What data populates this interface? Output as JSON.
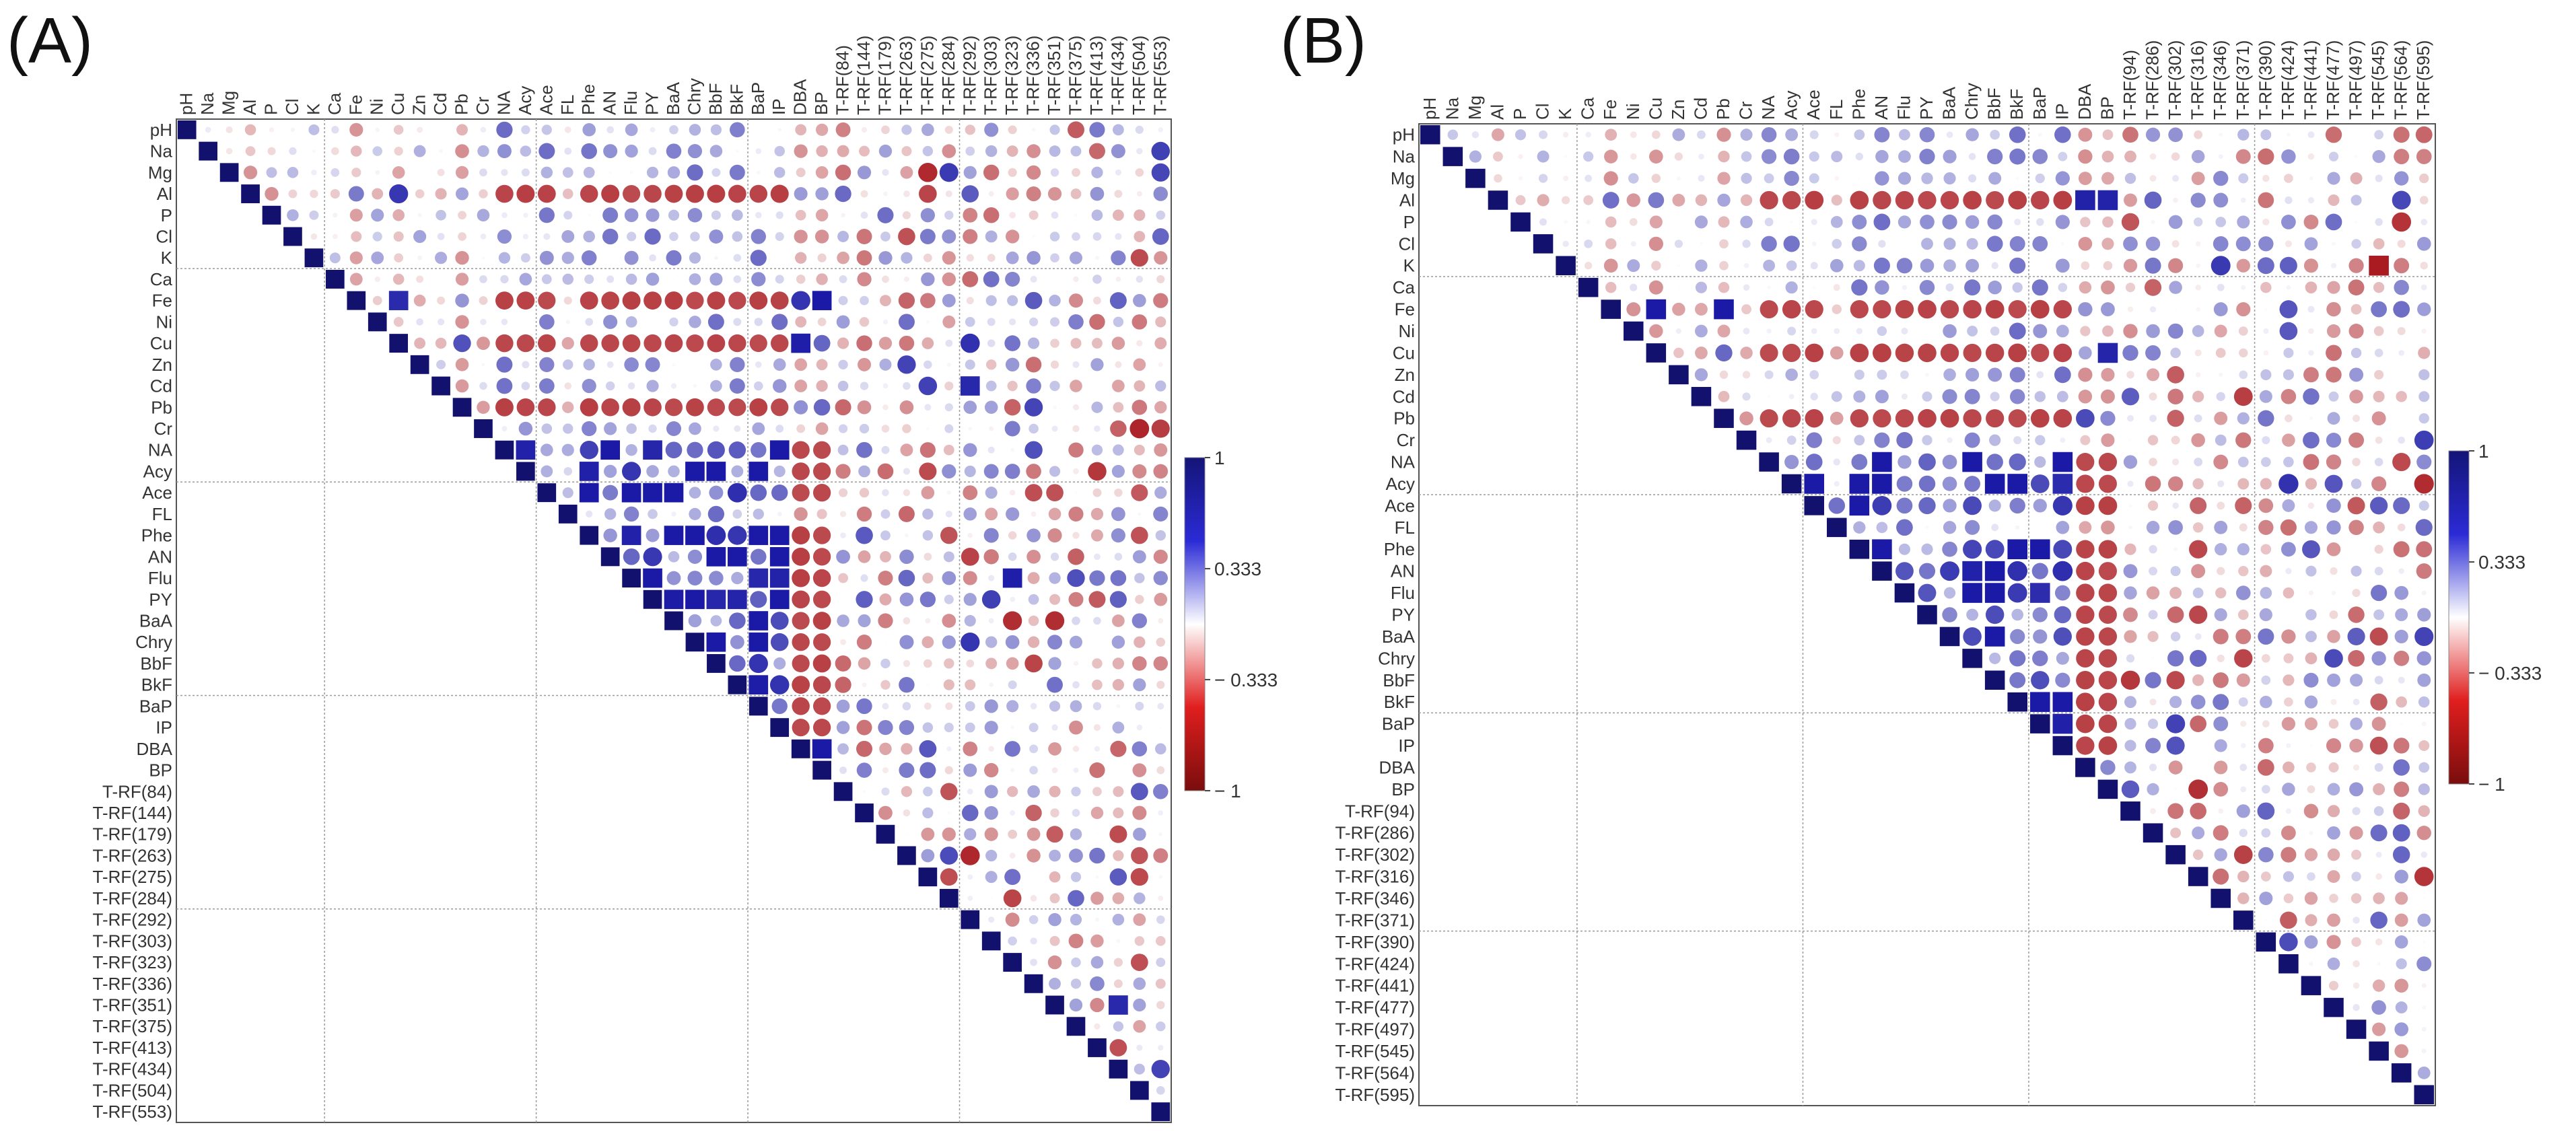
{
  "panels": [
    {
      "letter": "(A)",
      "chart_data": {
        "type": "heatmap",
        "subtype": "correlation-circle-matrix-upper-triangle",
        "variables": [
          "pH",
          "Na",
          "Mg",
          "Al",
          "P",
          "Cl",
          "K",
          "Ca",
          "Fe",
          "Ni",
          "Cu",
          "Zn",
          "Cd",
          "Pb",
          "Cr",
          "NA",
          "Acy",
          "Ace",
          "FL",
          "Phe",
          "AN",
          "Flu",
          "PY",
          "BaA",
          "Chry",
          "BbF",
          "BkF",
          "BaP",
          "IP",
          "DBA",
          "BP",
          "T-RF(84)",
          "T-RF(144)",
          "T-RF(179)",
          "T-RF(263)",
          "T-RF(275)",
          "T-RF(284)",
          "T-RF(292)",
          "T-RF(303)",
          "T-RF(323)",
          "T-RF(336)",
          "T-RF(351)",
          "T-RF(375)",
          "T-RF(413)",
          "T-RF(434)",
          "T-RF(504)",
          "T-RF(553)"
        ],
        "colorbar": {
          "ticks": [
            "1",
            "0.333",
            "− 0.333",
            "− 1"
          ],
          "range": [
            -1,
            1
          ]
        },
        "colors": {
          "positive": "#1a1aa6",
          "negative": "#a50f15",
          "neutral": "#ffffff"
        }
      }
    },
    {
      "letter": "(B)",
      "chart_data": {
        "type": "heatmap",
        "subtype": "correlation-circle-matrix-upper-triangle",
        "variables": [
          "pH",
          "Na",
          "Mg",
          "Al",
          "P",
          "Cl",
          "K",
          "Ca",
          "Fe",
          "Ni",
          "Cu",
          "Zn",
          "Cd",
          "Pb",
          "Cr",
          "NA",
          "Acy",
          "Ace",
          "FL",
          "Phe",
          "AN",
          "Flu",
          "PY",
          "BaA",
          "Chry",
          "BbF",
          "BkF",
          "BaP",
          "IP",
          "DBA",
          "BP",
          "T-RF(94)",
          "T-RF(286)",
          "T-RF(302)",
          "T-RF(316)",
          "T-RF(346)",
          "T-RF(371)",
          "T-RF(390)",
          "T-RF(424)",
          "T-RF(441)",
          "T-RF(477)",
          "T-RF(497)",
          "T-RF(545)",
          "T-RF(564)",
          "T-RF(595)"
        ],
        "colorbar": {
          "ticks": [
            "1",
            "0.333",
            "− 0.333",
            "− 1"
          ],
          "range": [
            -1,
            1
          ]
        },
        "colors": {
          "positive": "#1a1aa6",
          "negative": "#a50f15",
          "neutral": "#ffffff"
        }
      }
    }
  ]
}
